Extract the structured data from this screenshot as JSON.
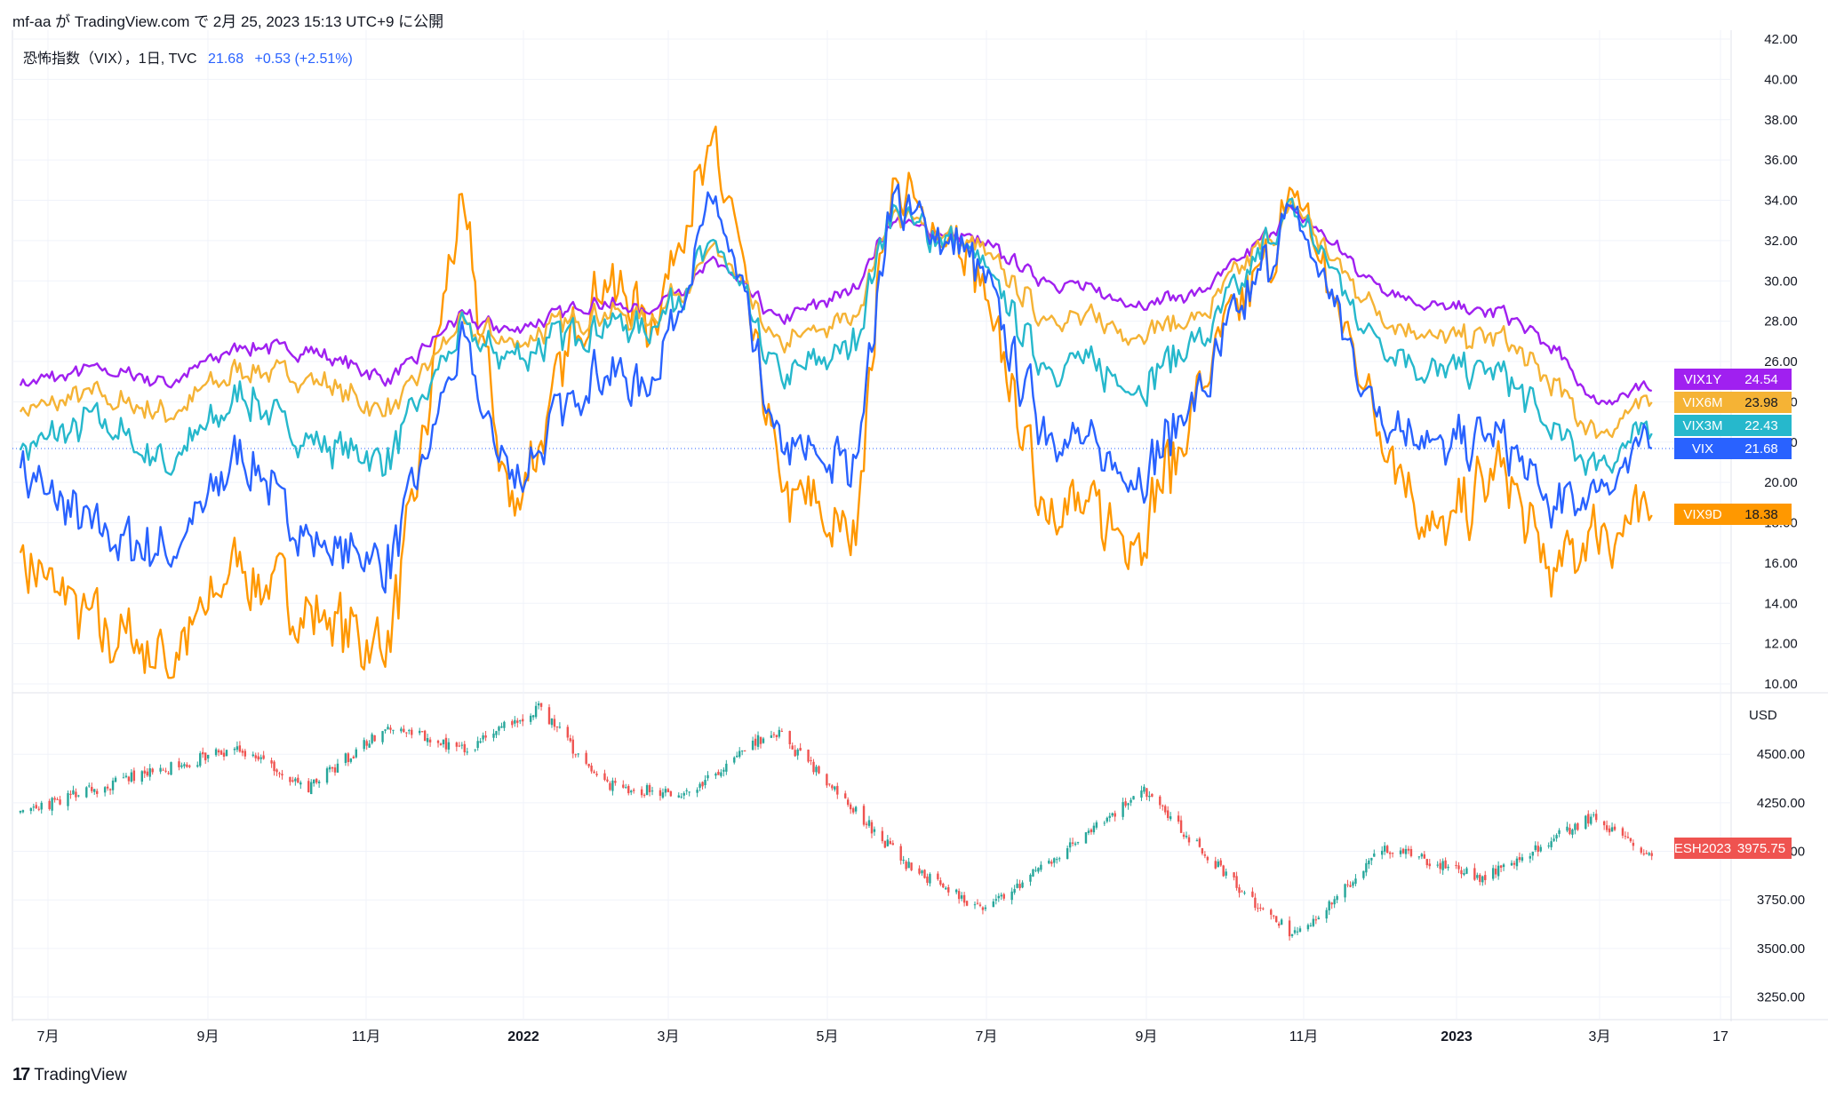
{
  "header": {
    "publish_line": "mf-aa が TradingView.com で 2月 25, 2023 15:13 UTC+9 に公開",
    "legend_name": "恐怖指数（VIX），1日, TVC",
    "legend_value": "21.68",
    "legend_change": "+0.53 (+2.51%)"
  },
  "footer": {
    "brand_logo": "17",
    "brand_name": "TradingView"
  },
  "colors": {
    "VIX": "#2962ff",
    "VIX3M": "#26b8cc",
    "VIX6M": "#f5b335",
    "VIX1Y": "#a020f0",
    "VIX9D": "#ff9800",
    "ES_up": "#26a69a",
    "ES_down": "#ef5350",
    "background": "#ffffff",
    "grid": "#f0f3fa"
  },
  "chart_data": [
    {
      "type": "line",
      "title": "恐怖指数（VIX），1日, TVC",
      "x_tick_labels": [
        "7月",
        "9月",
        "11月",
        "2022",
        "3月",
        "5月",
        "7月",
        "9月",
        "11月",
        "2023",
        "3月",
        "17"
      ],
      "y_tick_labels": [
        "10.00",
        "12.00",
        "14.00",
        "16.00",
        "18.00",
        "20.00",
        "22.00",
        "24.00",
        "26.00",
        "28.00",
        "30.00",
        "32.00",
        "34.00",
        "36.00",
        "38.00",
        "40.00",
        "42.00"
      ],
      "ylim": [
        10,
        42
      ],
      "x": [
        "2021-06-17",
        "2021-07-15",
        "2021-08-12",
        "2021-09-09",
        "2021-10-07",
        "2021-11-04",
        "2021-11-30",
        "2021-12-20",
        "2022-01-20",
        "2022-02-10",
        "2022-03-07",
        "2022-03-31",
        "2022-04-28",
        "2022-05-12",
        "2022-06-13",
        "2022-07-07",
        "2022-08-15",
        "2022-09-07",
        "2022-10-12",
        "2022-11-10",
        "2022-12-05",
        "2022-12-28",
        "2023-01-18",
        "2023-02-02",
        "2023-02-24"
      ],
      "series": [
        {
          "name": "VIX1Y",
          "last": "24.54",
          "values": [
            24.8,
            25.6,
            25.0,
            26.8,
            26.5,
            25.0,
            28.2,
            27.6,
            29.0,
            28.5,
            31.0,
            28.0,
            29.5,
            33.0,
            32.0,
            30.2,
            28.8,
            29.4,
            33.5,
            30.0,
            28.6,
            28.5,
            26.7,
            24.0,
            24.54
          ]
        },
        {
          "name": "VIX6M",
          "last": "23.98",
          "values": [
            23.5,
            24.3,
            23.4,
            25.7,
            25.0,
            23.6,
            27.7,
            27.0,
            28.4,
            28.0,
            31.5,
            26.8,
            28.2,
            33.3,
            31.8,
            28.5,
            27.5,
            28.2,
            33.6,
            28.6,
            27.0,
            27.2,
            24.8,
            22.5,
            23.98
          ]
        },
        {
          "name": "VIX3M",
          "last": "22.43",
          "values": [
            21.6,
            23.1,
            21.0,
            24.5,
            21.8,
            21.2,
            27.4,
            26.0,
            28.0,
            27.5,
            32.0,
            25.0,
            26.8,
            33.5,
            31.4,
            26.2,
            25.0,
            27.0,
            33.8,
            27.2,
            25.4,
            25.6,
            22.4,
            21.2,
            22.43
          ]
        },
        {
          "name": "VIX",
          "last": "21.68",
          "values": [
            20.7,
            17.4,
            16.5,
            21.5,
            16.8,
            16.2,
            26.8,
            19.8,
            25.5,
            25.0,
            34.0,
            21.5,
            20.8,
            33.8,
            31.0,
            23.0,
            20.2,
            24.8,
            33.5,
            24.0,
            21.8,
            22.0,
            18.7,
            19.8,
            21.68
          ]
        },
        {
          "name": "VIX9D",
          "last": "18.38",
          "values": [
            16.5,
            12.8,
            11.2,
            16.2,
            13.0,
            11.8,
            34.0,
            18.5,
            30.0,
            28.2,
            37.0,
            20.0,
            17.2,
            35.0,
            30.5,
            19.5,
            17.5,
            24.5,
            34.2,
            24.0,
            17.0,
            20.8,
            15.0,
            17.5,
            18.38
          ]
        }
      ]
    },
    {
      "type": "candlestick",
      "series_name": "ESH2023",
      "last": "3975.75",
      "ylabel": "USD",
      "y_tick_labels": [
        "3250.00",
        "3500.00",
        "3750.00",
        "4000.00",
        "4250.00",
        "4500.00"
      ],
      "ylim": [
        3170,
        4780
      ],
      "x": [
        "2021-06-17",
        "2021-08-01",
        "2021-09-07",
        "2021-10-04",
        "2021-11-04",
        "2021-12-02",
        "2021-12-30",
        "2022-01-24",
        "2022-02-24",
        "2022-03-29",
        "2022-05-20",
        "2022-06-16",
        "2022-08-16",
        "2022-09-30",
        "2022-10-13",
        "2022-11-15",
        "2022-12-22",
        "2023-02-02",
        "2023-02-24"
      ],
      "close": [
        4200,
        4390,
        4530,
        4330,
        4650,
        4520,
        4740,
        4340,
        4290,
        4630,
        3910,
        3700,
        4310,
        3690,
        3560,
        4020,
        3860,
        4180,
        3975.75
      ]
    }
  ]
}
